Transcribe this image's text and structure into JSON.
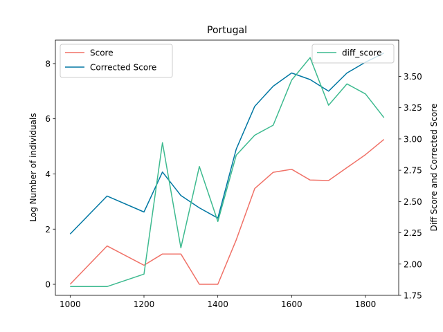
{
  "chart_data": {
    "type": "line",
    "title": "Portugal",
    "ylabel": "Log Number of individuals",
    "y2label": "Diff Score and Corrected Score",
    "xlim": [
      960,
      1890
    ],
    "ylim": [
      -0.4,
      8.85
    ],
    "y2lim": [
      1.75,
      3.79
    ],
    "x_ticks": [
      1000,
      1200,
      1400,
      1600,
      1800
    ],
    "y_ticks": [
      0,
      2,
      4,
      6,
      8
    ],
    "y2_ticks": [
      1.75,
      2.0,
      2.25,
      2.5,
      2.75,
      3.0,
      3.25,
      3.5
    ],
    "y2_tick_labels": [
      "1.75",
      "2.00",
      "2.25",
      "2.50",
      "2.75",
      "3.00",
      "3.25",
      "3.50"
    ],
    "x": [
      1000,
      1100,
      1200,
      1250,
      1300,
      1350,
      1400,
      1450,
      1500,
      1550,
      1600,
      1650,
      1700,
      1750,
      1800,
      1850
    ],
    "series": [
      {
        "name": "Score",
        "axis": "left",
        "color": "#f07167",
        "values": [
          0.0,
          1.39,
          0.69,
          1.1,
          1.1,
          0.0,
          0.0,
          1.61,
          3.47,
          4.06,
          4.17,
          3.78,
          3.76,
          4.23,
          4.7,
          5.25
        ]
      },
      {
        "name": "Corrected Score",
        "axis": "left",
        "color": "#0077a3",
        "values": [
          1.82,
          3.2,
          2.62,
          4.07,
          3.22,
          2.77,
          2.4,
          4.9,
          6.45,
          7.18,
          7.66,
          7.42,
          7.0,
          7.66,
          8.05,
          8.38
        ]
      },
      {
        "name": "diff_score",
        "axis": "right",
        "color": "#3dba8f",
        "values": [
          1.82,
          1.82,
          1.92,
          2.97,
          2.13,
          2.78,
          2.34,
          2.87,
          3.03,
          3.11,
          3.47,
          3.65,
          3.27,
          3.44,
          3.36,
          3.17
        ]
      }
    ]
  }
}
